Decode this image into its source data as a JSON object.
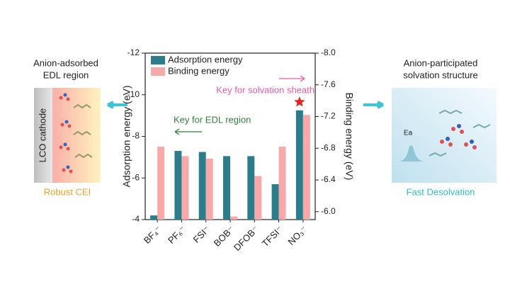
{
  "chart_data": {
    "type": "bar",
    "categories": [
      "BF₄⁻",
      "PF₆⁻",
      "FSI⁻",
      "BOB⁻",
      "DFOB⁻",
      "TFSI⁻",
      "NO₃⁻"
    ],
    "series": [
      {
        "name": "Adsorption energy",
        "color": "#2b7d8c",
        "values": [
          -4.2,
          -7.3,
          -7.25,
          -7.05,
          -7.05,
          -5.7,
          -9.25
        ]
      },
      {
        "name": "Binding energy",
        "color": "#f6a9a8",
        "axis": "y2",
        "values": [
          -6.82,
          -6.7,
          -6.67,
          -5.94,
          -6.45,
          -6.82,
          -7.22
        ]
      }
    ],
    "ylabel": "Adsorption energy (eV)",
    "y2label": "Binding energy (eV)",
    "ylim": [
      -4,
      -12
    ],
    "yticks": [
      -12,
      -10,
      -8,
      -6,
      -4
    ],
    "y2lim": [
      -5.9,
      -8.0
    ],
    "y2ticks": [
      {
        "value": -8,
        "label": "-8.0"
      },
      -7.6,
      -7.2,
      -6.8,
      -6.4,
      {
        "value": -6,
        "label": "-6.0"
      }
    ],
    "legend": "upper left",
    "annotations": [
      "Key for solvation sheath",
      "Key for EDL region"
    ]
  },
  "left_panel": {
    "title": [
      "Anion-adsorbed",
      "EDL region"
    ],
    "cathode": "LCO cathode",
    "caption": "Robust CEI"
  },
  "right_panel": {
    "title": [
      "Anion-participated",
      "solvation structure"
    ],
    "barrier": "Ea",
    "caption": "Fast Desolvation"
  }
}
